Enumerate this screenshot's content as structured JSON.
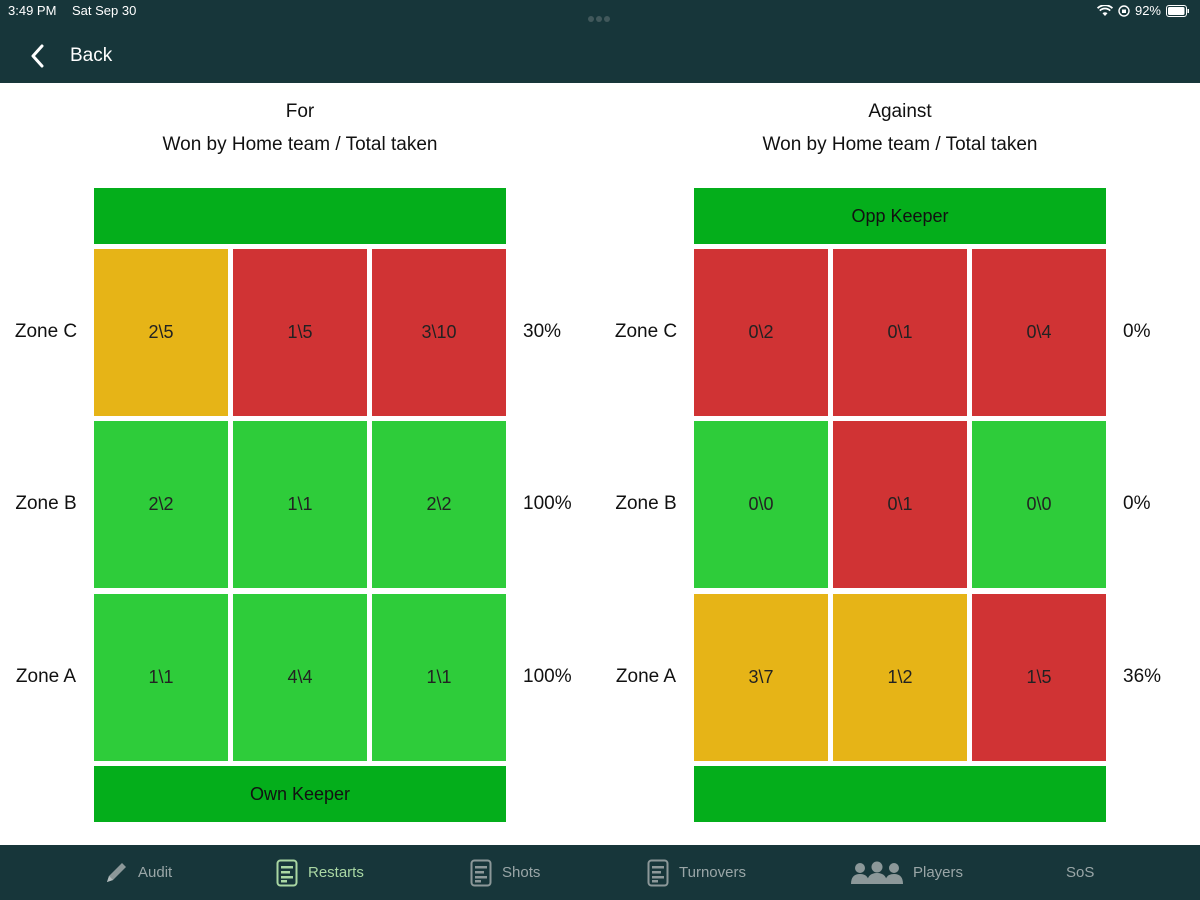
{
  "status_bar": {
    "time": "3:49 PM",
    "date": "Sat Sep 30",
    "battery": "92%"
  },
  "header": {
    "back_label": "Back"
  },
  "colors": {
    "header_bg": "#17363a",
    "keeper_green": "#04ae1b",
    "good": "#2ecc3a",
    "bad": "#d03334",
    "mixed": "#e6b417"
  },
  "for_panel": {
    "title": "For",
    "subtitle": "Won by Home team / Total taken",
    "top_keeper": "",
    "bottom_keeper": "Own Keeper",
    "zones": [
      {
        "label": "Zone C",
        "cells": [
          "2\\5",
          "1\\5",
          "3\\10"
        ],
        "pct": "30%"
      },
      {
        "label": "Zone B",
        "cells": [
          "2\\2",
          "1\\1",
          "2\\2"
        ],
        "pct": "100%"
      },
      {
        "label": "Zone A",
        "cells": [
          "1\\1",
          "4\\4",
          "1\\1"
        ],
        "pct": "100%"
      }
    ]
  },
  "against_panel": {
    "title": "Against",
    "subtitle": "Won by Home team / Total taken",
    "top_keeper": "Opp Keeper",
    "bottom_keeper": "",
    "zones": [
      {
        "label": "Zone C",
        "cells": [
          "0\\2",
          "0\\1",
          "0\\4"
        ],
        "pct": "0%"
      },
      {
        "label": "Zone B",
        "cells": [
          "0\\0",
          "0\\1",
          "0\\0"
        ],
        "pct": "0%"
      },
      {
        "label": "Zone A",
        "cells": [
          "3\\7",
          "1\\2",
          "1\\5"
        ],
        "pct": "36%"
      }
    ]
  },
  "tabs": [
    {
      "label": "Audit",
      "icon": "pencil-icon"
    },
    {
      "label": "Restarts",
      "icon": "document-list-icon",
      "active": true
    },
    {
      "label": "Shots",
      "icon": "document-list-icon"
    },
    {
      "label": "Turnovers",
      "icon": "document-list-icon"
    },
    {
      "label": "Players",
      "icon": "people-group-icon"
    },
    {
      "label": "SoS",
      "icon": ""
    }
  ]
}
